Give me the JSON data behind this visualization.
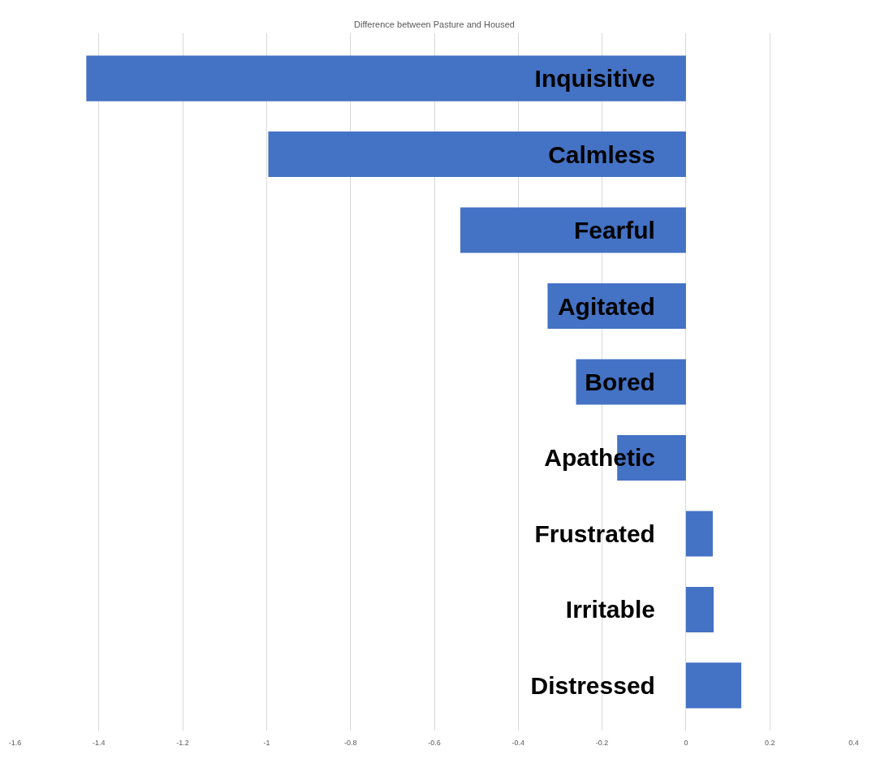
{
  "chart_data": {
    "type": "bar",
    "orientation": "horizontal",
    "title": "Difference between Pasture and Housed",
    "categories": [
      "Inquisitive",
      "Calmless",
      "Fearful",
      "Agitated",
      "Bored",
      "Apathetic",
      "Frustrated",
      "Irritable",
      "Distressed"
    ],
    "values": [
      -1.43,
      -0.996,
      -0.538,
      -0.33,
      -0.262,
      -0.164,
      0.064,
      0.066,
      0.132
    ],
    "color": "#4472c4",
    "xlim": [
      -1.6,
      0.4
    ],
    "xticks": [
      -1.6,
      -1.4,
      -1.2,
      -1,
      -0.8,
      -0.6,
      -0.4,
      -0.2,
      0,
      0.2,
      0.4
    ],
    "grid": "x"
  }
}
